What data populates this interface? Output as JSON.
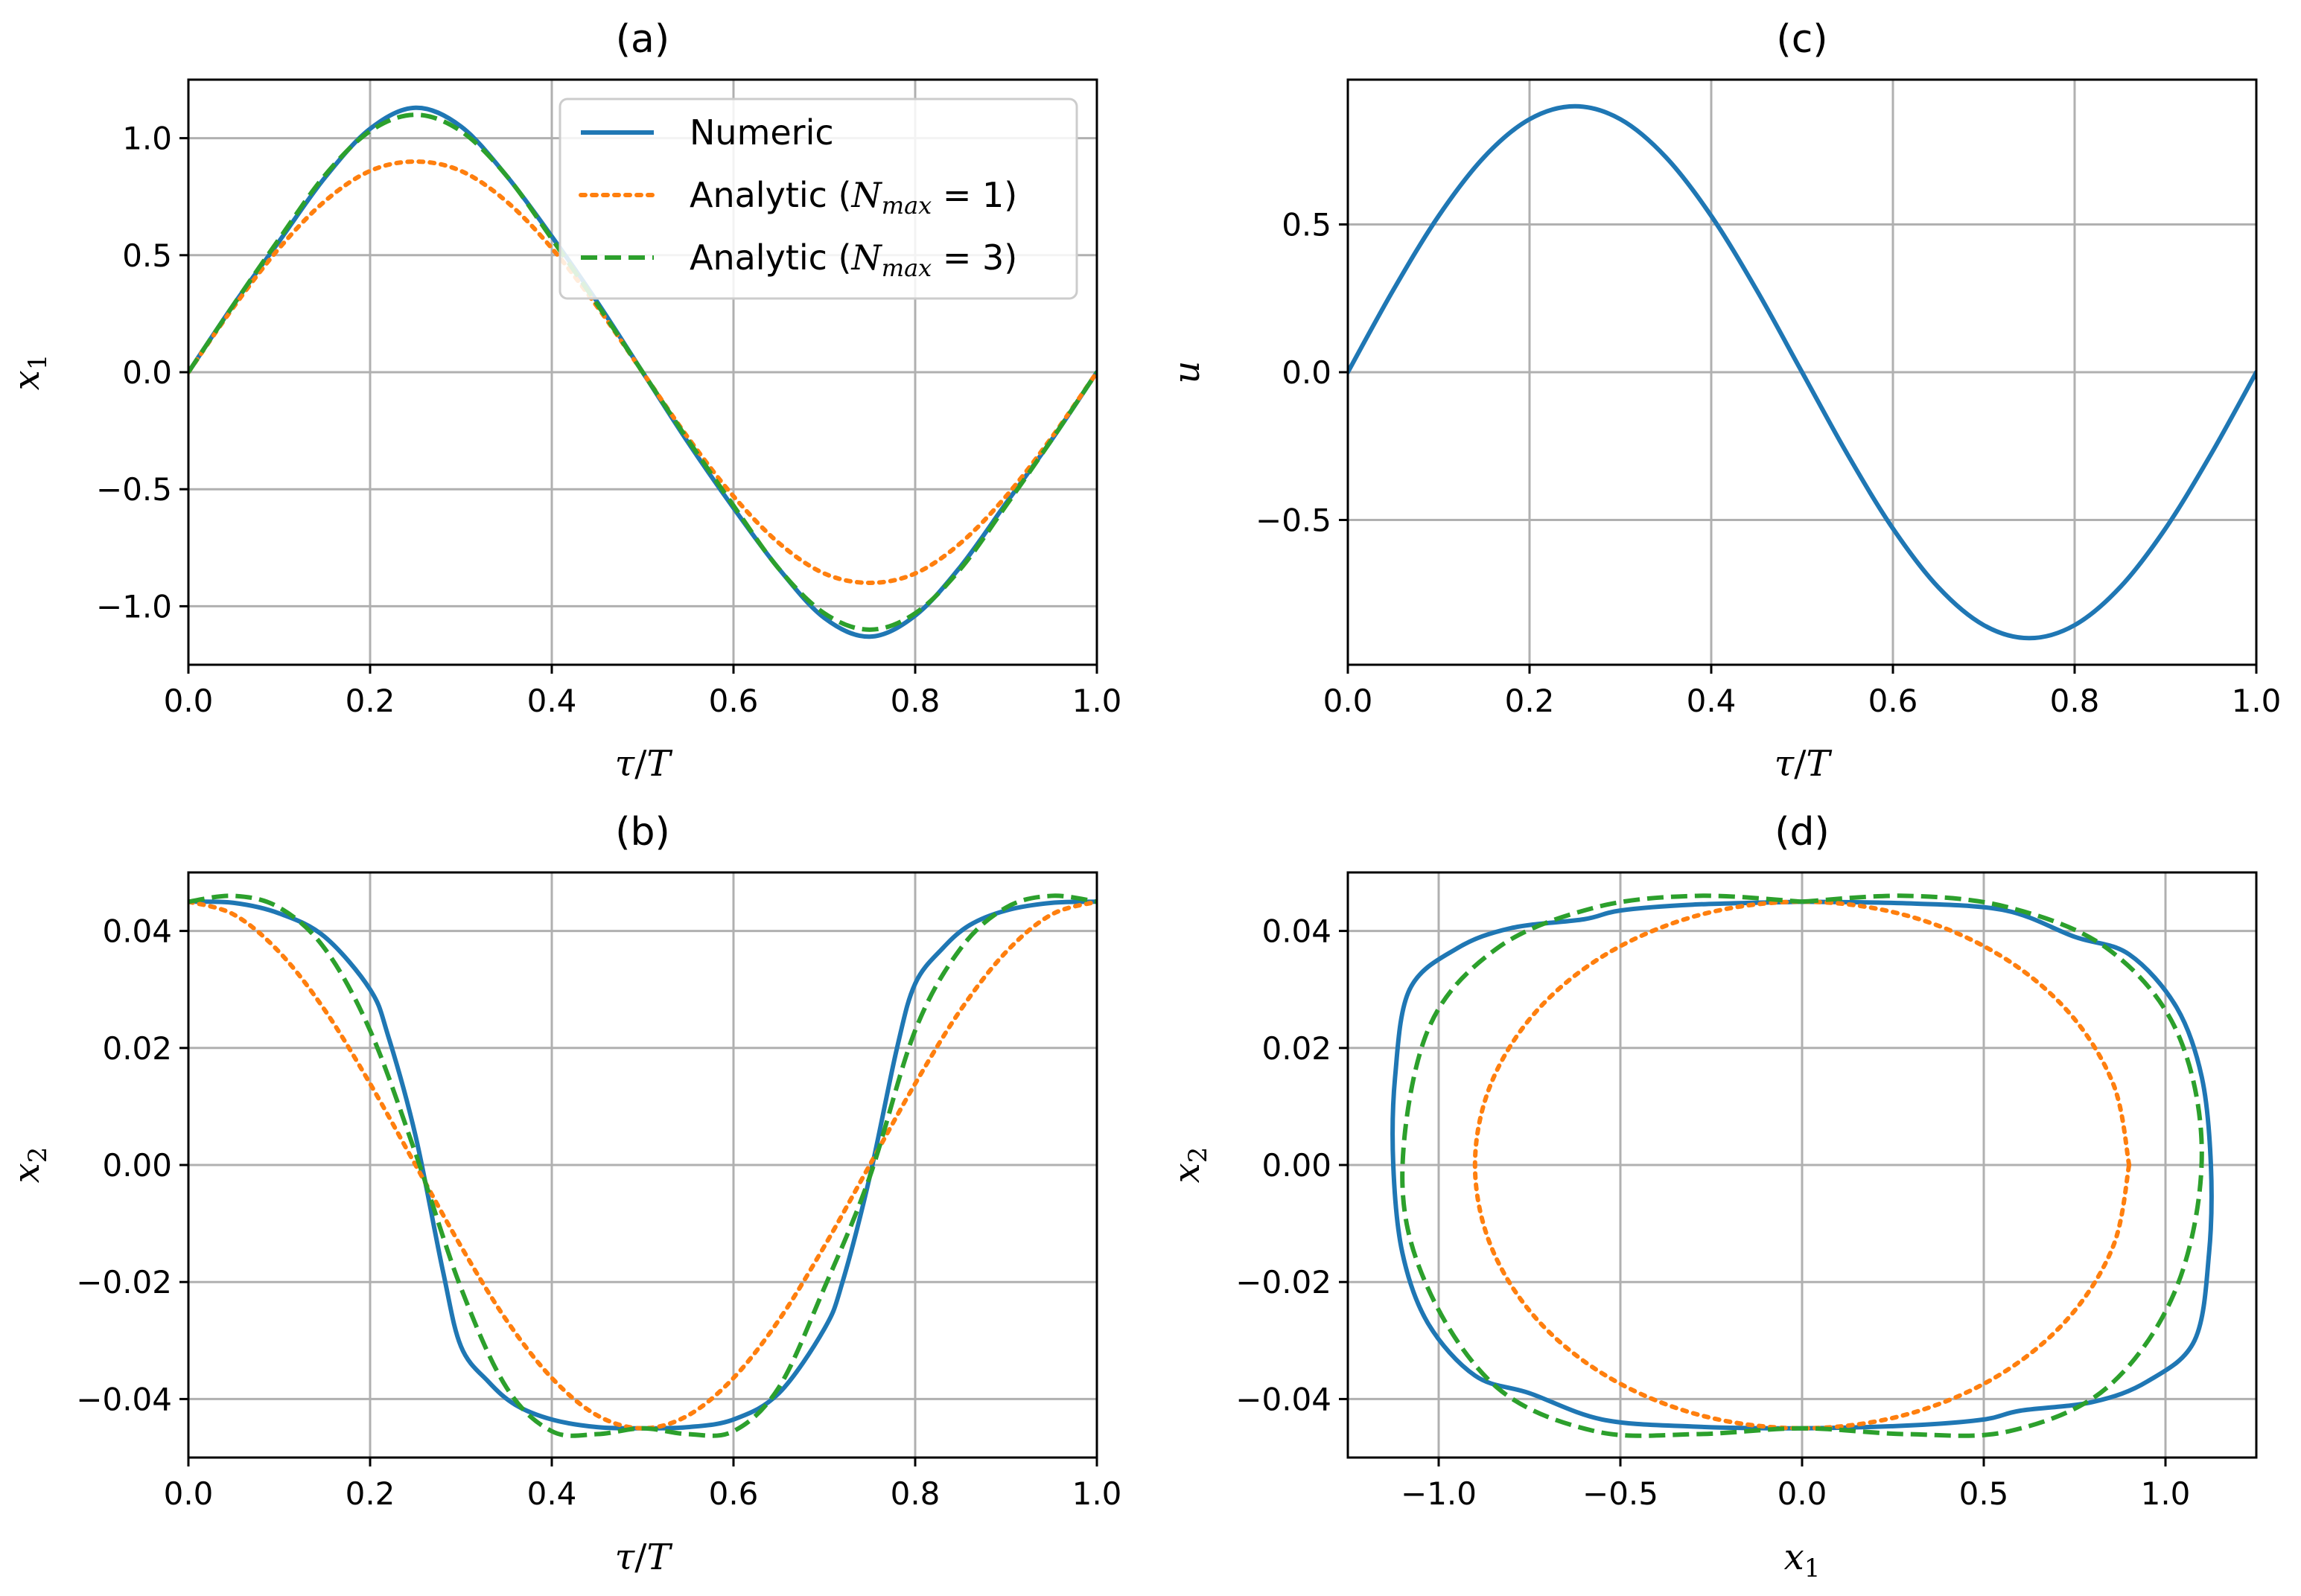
{
  "chart_data": [
    {
      "id": "a",
      "type": "line",
      "title": "(a)",
      "xlabel": "τ/T",
      "ylabel": "x1",
      "xlim": [
        0,
        1
      ],
      "ylim": [
        -1.25,
        1.25
      ],
      "xticks": [
        0,
        0.2,
        0.4,
        0.6,
        0.8,
        1.0
      ],
      "xtick_labels": [
        "0.0",
        "0.2",
        "0.4",
        "0.6",
        "0.8",
        "1.0"
      ],
      "yticks": [
        -1.0,
        -0.5,
        0.0,
        0.5,
        1.0
      ],
      "ytick_labels": [
        "−1.0",
        "−0.5",
        "0.0",
        "0.5",
        "1.0"
      ],
      "grid": true,
      "legend_position": "top-right",
      "series": [
        {
          "name": "Numeric",
          "color": "#1f77b4",
          "style": "solid",
          "x": [
            0,
            0.05,
            0.1,
            0.15,
            0.2,
            0.25,
            0.3,
            0.35,
            0.4,
            0.45,
            0.5,
            0.55,
            0.6,
            0.65,
            0.7,
            0.75,
            0.8,
            0.85,
            0.9,
            0.95,
            1.0
          ],
          "y": [
            0,
            0.29,
            0.56,
            0.83,
            1.04,
            1.13,
            1.05,
            0.84,
            0.58,
            0.3,
            0,
            -0.3,
            -0.58,
            -0.84,
            -1.05,
            -1.13,
            -1.04,
            -0.83,
            -0.56,
            -0.29,
            0
          ]
        },
        {
          "name": "Analytic (N_max = 1)",
          "color": "#ff7f0e",
          "style": "dotted",
          "x": [
            0,
            0.05,
            0.1,
            0.15,
            0.2,
            0.25,
            0.3,
            0.35,
            0.4,
            0.45,
            0.5,
            0.55,
            0.6,
            0.65,
            0.7,
            0.75,
            0.8,
            0.85,
            0.9,
            0.95,
            1.0
          ],
          "y": [
            0,
            0.28,
            0.53,
            0.73,
            0.86,
            0.9,
            0.86,
            0.73,
            0.53,
            0.28,
            0,
            -0.28,
            -0.53,
            -0.73,
            -0.86,
            -0.9,
            -0.86,
            -0.73,
            -0.53,
            -0.28,
            0
          ]
        },
        {
          "name": "Analytic (N_max = 3)",
          "color": "#2ca02c",
          "style": "dashed",
          "x": [
            0,
            0.05,
            0.1,
            0.15,
            0.2,
            0.25,
            0.3,
            0.35,
            0.4,
            0.45,
            0.5,
            0.55,
            0.6,
            0.65,
            0.7,
            0.75,
            0.8,
            0.85,
            0.9,
            0.95,
            1.0
          ],
          "y": [
            0,
            0.29,
            0.57,
            0.84,
            1.03,
            1.1,
            1.03,
            0.84,
            0.57,
            0.29,
            0,
            -0.29,
            -0.57,
            -0.84,
            -1.03,
            -1.1,
            -1.03,
            -0.84,
            -0.57,
            -0.29,
            0
          ]
        }
      ]
    },
    {
      "id": "b",
      "type": "line",
      "title": "(b)",
      "xlabel": "τ/T",
      "ylabel": "x2",
      "xlim": [
        0,
        1
      ],
      "ylim": [
        -0.05,
        0.05
      ],
      "xticks": [
        0,
        0.2,
        0.4,
        0.6,
        0.8,
        1.0
      ],
      "xtick_labels": [
        "0.0",
        "0.2",
        "0.4",
        "0.6",
        "0.8",
        "1.0"
      ],
      "yticks": [
        -0.04,
        -0.02,
        0.0,
        0.02,
        0.04
      ],
      "ytick_labels": [
        "−0.04",
        "−0.02",
        "0.00",
        "0.02",
        "0.04"
      ],
      "grid": true,
      "series": [
        {
          "name": "Numeric",
          "color": "#1f77b4",
          "style": "solid",
          "x": [
            0,
            0.05,
            0.1,
            0.15,
            0.2,
            0.22,
            0.25,
            0.28,
            0.3,
            0.33,
            0.36,
            0.4,
            0.45,
            0.5,
            0.55,
            0.6,
            0.65,
            0.7,
            0.72,
            0.75,
            0.78,
            0.8,
            0.83,
            0.86,
            0.9,
            0.95,
            1.0
          ],
          "y": [
            0.045,
            0.0448,
            0.043,
            0.039,
            0.03,
            0.022,
            0.005,
            -0.018,
            -0.031,
            -0.037,
            -0.041,
            -0.0435,
            -0.0448,
            -0.045,
            -0.0448,
            -0.0435,
            -0.039,
            -0.028,
            -0.02,
            -0.002,
            0.02,
            0.031,
            0.037,
            0.041,
            0.0435,
            0.0448,
            0.045
          ]
        },
        {
          "name": "Analytic (N_max = 1)",
          "color": "#ff7f0e",
          "style": "dotted",
          "x": [
            0,
            0.05,
            0.1,
            0.15,
            0.2,
            0.25,
            0.3,
            0.35,
            0.4,
            0.45,
            0.5,
            0.55,
            0.6,
            0.65,
            0.7,
            0.75,
            0.8,
            0.85,
            0.9,
            0.95,
            1.0
          ],
          "y": [
            0.045,
            0.0428,
            0.0364,
            0.0265,
            0.0139,
            0,
            -0.0139,
            -0.0265,
            -0.0364,
            -0.0428,
            -0.045,
            -0.0428,
            -0.0364,
            -0.0265,
            -0.0139,
            0,
            0.0139,
            0.0265,
            0.0364,
            0.0428,
            0.045
          ]
        },
        {
          "name": "Analytic (N_max = 3)",
          "color": "#2ca02c",
          "style": "dashed",
          "x": [
            0,
            0.05,
            0.1,
            0.15,
            0.2,
            0.25,
            0.3,
            0.35,
            0.4,
            0.45,
            0.5,
            0.55,
            0.6,
            0.65,
            0.7,
            0.75,
            0.8,
            0.85,
            0.9,
            0.95,
            1.0
          ],
          "y": [
            0.045,
            0.046,
            0.044,
            0.037,
            0.023,
            0.002,
            -0.021,
            -0.038,
            -0.0455,
            -0.046,
            -0.045,
            -0.046,
            -0.0455,
            -0.038,
            -0.021,
            -0.002,
            0.023,
            0.037,
            0.044,
            0.046,
            0.045
          ]
        }
      ]
    },
    {
      "id": "c",
      "type": "line",
      "title": "(c)",
      "xlabel": "τ/T",
      "ylabel": "u",
      "xlim": [
        0,
        1
      ],
      "ylim": [
        -0.99,
        0.99
      ],
      "xticks": [
        0,
        0.2,
        0.4,
        0.6,
        0.8,
        1.0
      ],
      "xtick_labels": [
        "0.0",
        "0.2",
        "0.4",
        "0.6",
        "0.8",
        "1.0"
      ],
      "yticks": [
        -0.5,
        0.0,
        0.5
      ],
      "ytick_labels": [
        "−0.5",
        "0.0",
        "0.5"
      ],
      "grid": true,
      "series": [
        {
          "name": "u",
          "color": "#1f77b4",
          "style": "solid",
          "x": [
            0,
            0.05,
            0.1,
            0.15,
            0.2,
            0.25,
            0.3,
            0.35,
            0.4,
            0.45,
            0.5,
            0.55,
            0.6,
            0.65,
            0.7,
            0.75,
            0.8,
            0.85,
            0.9,
            0.95,
            1.0
          ],
          "y": [
            0,
            0.278,
            0.529,
            0.728,
            0.856,
            0.9,
            0.856,
            0.728,
            0.529,
            0.278,
            0,
            -0.278,
            -0.529,
            -0.728,
            -0.856,
            -0.9,
            -0.856,
            -0.728,
            -0.529,
            -0.278,
            0
          ]
        }
      ]
    },
    {
      "id": "d",
      "type": "line",
      "title": "(d)",
      "xlabel": "x1",
      "ylabel": "x2",
      "xlim": [
        -1.25,
        1.25
      ],
      "ylim": [
        -0.05,
        0.05
      ],
      "xticks": [
        -1.0,
        -0.5,
        0.0,
        0.5,
        1.0
      ],
      "xtick_labels": [
        "−1.0",
        "−0.5",
        "0.0",
        "0.5",
        "1.0"
      ],
      "yticks": [
        -0.04,
        -0.02,
        0.0,
        0.02,
        0.04
      ],
      "ytick_labels": [
        "−0.04",
        "−0.02",
        "0.00",
        "0.02",
        "0.04"
      ],
      "grid": true,
      "series": [
        {
          "name": "Numeric",
          "color": "#1f77b4",
          "style": "solid",
          "x": [
            0,
            0.3,
            0.56,
            0.75,
            0.9,
            1.03,
            1.1,
            1.125,
            1.12,
            1.08,
            0.95,
            0.8,
            0.6,
            0.5,
            0.3,
            0,
            -0.3,
            -0.55,
            -0.75,
            -0.9,
            -1.03,
            -1.1,
            -1.125,
            -1.12,
            -1.08,
            -0.95,
            -0.8,
            -0.6,
            -0.5,
            -0.3,
            0
          ],
          "y": [
            0.045,
            0.0447,
            0.0435,
            0.039,
            0.036,
            0.027,
            0.015,
            0,
            -0.015,
            -0.03,
            -0.037,
            -0.0405,
            -0.042,
            -0.0435,
            -0.0445,
            -0.045,
            -0.0447,
            -0.0435,
            -0.039,
            -0.036,
            -0.027,
            -0.015,
            0,
            0.015,
            0.03,
            0.037,
            0.0405,
            0.042,
            0.0435,
            0.0445,
            0.045
          ]
        },
        {
          "name": "Analytic (N_max = 1)",
          "color": "#ff7f0e",
          "style": "dotted",
          "x": [
            0.9,
            0.856,
            0.728,
            0.529,
            0.278,
            0,
            -0.278,
            -0.529,
            -0.728,
            -0.856,
            -0.9,
            -0.856,
            -0.728,
            -0.529,
            -0.278,
            0,
            0.278,
            0.529,
            0.728,
            0.856,
            0.9
          ],
          "y": [
            0,
            0.0139,
            0.0265,
            0.0364,
            0.0428,
            0.045,
            0.0428,
            0.0364,
            0.0265,
            0.0139,
            0,
            -0.0139,
            -0.0265,
            -0.0364,
            -0.0428,
            -0.045,
            -0.0428,
            -0.0364,
            -0.0265,
            -0.0139,
            0
          ]
        },
        {
          "name": "Analytic (N_max = 3)",
          "color": "#2ca02c",
          "style": "dashed",
          "x": [
            0,
            0.29,
            0.57,
            0.84,
            1.03,
            1.1,
            1.03,
            0.84,
            0.57,
            0.29,
            0,
            -0.29,
            -0.57,
            -0.84,
            -1.03,
            -1.1,
            -1.03,
            -0.84,
            -0.57,
            -0.29,
            0
          ],
          "y": [
            0.045,
            0.046,
            0.044,
            0.037,
            0.023,
            0.002,
            -0.021,
            -0.038,
            -0.0455,
            -0.046,
            -0.045,
            -0.046,
            -0.0455,
            -0.038,
            -0.021,
            -0.002,
            0.023,
            0.037,
            0.044,
            0.046,
            0.045
          ]
        }
      ]
    }
  ],
  "legend": {
    "entries": [
      {
        "label": "Numeric",
        "color": "#1f77b4",
        "style": "solid"
      },
      {
        "label_prefix": "Analytic (",
        "label_var": "N",
        "label_sub": "max",
        "label_suffix": " = 1)",
        "color": "#ff7f0e",
        "style": "dotted"
      },
      {
        "label_prefix": "Analytic (",
        "label_var": "N",
        "label_sub": "max",
        "label_suffix": " = 3)",
        "color": "#2ca02c",
        "style": "dashed"
      }
    ]
  },
  "labels": {
    "tau": "τ",
    "T": "T",
    "x": "x",
    "u": "u",
    "sub1": "1",
    "sub2": "2"
  }
}
